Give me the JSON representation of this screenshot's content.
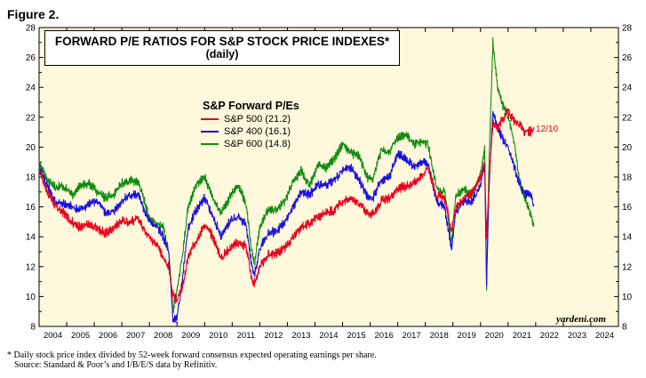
{
  "figure_label": "Figure 2.",
  "footnote": {
    "line1": "*  Daily stock price index divided by 52-week forward consensus expected operating earnings per share.",
    "line2": "Source: Standard & Poor’s and I/B/E/S data by Refinitiv."
  },
  "credit": "yardeni.com",
  "chart_data": {
    "type": "line",
    "title": "FORWARD P/E RATIOS FOR S&P STOCK PRICE INDEXES*",
    "subtitle": "(daily)",
    "legend_title": "S&P Forward P/Es",
    "legend_placement": "upper-middle",
    "grid": false,
    "xlim": [
      2004.0,
      2025.0
    ],
    "ylim": [
      8,
      28
    ],
    "y_ticks": [
      8,
      10,
      12,
      14,
      16,
      18,
      20,
      22,
      24,
      26,
      28
    ],
    "x_tick_labels": [
      "2004",
      "2005",
      "2006",
      "2007",
      "2008",
      "2009",
      "2010",
      "2011",
      "2012",
      "2013",
      "2014",
      "2015",
      "2016",
      "2017",
      "2018",
      "2019",
      "2020",
      "2021",
      "2022",
      "2023",
      "2024"
    ],
    "annotation": "12/10",
    "series": [
      {
        "name": "S&P 500 (21.2)",
        "color": "#e8001c",
        "x": [
          2004.0,
          2004.3,
          2004.6,
          2004.9,
          2005.2,
          2005.5,
          2005.8,
          2006.1,
          2006.4,
          2006.7,
          2007.0,
          2007.3,
          2007.6,
          2007.8,
          2008.0,
          2008.3,
          2008.5,
          2008.7,
          2008.85,
          2009.0,
          2009.2,
          2009.4,
          2009.7,
          2010.0,
          2010.3,
          2010.6,
          2010.9,
          2011.2,
          2011.5,
          2011.7,
          2011.8,
          2012.0,
          2012.3,
          2012.6,
          2012.9,
          2013.2,
          2013.5,
          2013.8,
          2014.1,
          2014.4,
          2014.7,
          2015.0,
          2015.3,
          2015.6,
          2015.9,
          2016.1,
          2016.4,
          2016.7,
          2017.0,
          2017.3,
          2017.6,
          2017.9,
          2018.1,
          2018.4,
          2018.7,
          2018.95,
          2019.1,
          2019.4,
          2019.7,
          2020.0,
          2020.15,
          2020.22,
          2020.3,
          2020.45,
          2020.6,
          2020.8,
          2021.0,
          2021.2,
          2021.4,
          2021.6,
          2021.8,
          2021.94
        ],
        "values": [
          18.5,
          17.0,
          16.0,
          15.6,
          15.0,
          14.6,
          14.8,
          14.6,
          14.2,
          14.6,
          15.1,
          15.0,
          15.2,
          14.6,
          14.0,
          13.4,
          12.6,
          12.0,
          10.0,
          9.8,
          10.6,
          12.6,
          13.8,
          14.8,
          14.0,
          12.6,
          13.2,
          13.6,
          13.4,
          11.2,
          10.8,
          12.0,
          12.8,
          12.9,
          13.2,
          13.9,
          14.6,
          14.9,
          15.3,
          15.6,
          15.8,
          16.4,
          16.5,
          16.2,
          15.6,
          15.5,
          16.4,
          16.6,
          17.2,
          17.4,
          17.6,
          18.2,
          18.6,
          16.8,
          16.6,
          14.4,
          15.9,
          16.6,
          16.9,
          18.0,
          19.0,
          13.8,
          17.4,
          21.6,
          21.2,
          21.9,
          22.4,
          21.8,
          21.6,
          21.0,
          21.0,
          21.2
        ]
      },
      {
        "name": "S&P 400 (16.1)",
        "color": "#1a10e0",
        "x": [
          2004.0,
          2004.3,
          2004.6,
          2004.9,
          2005.2,
          2005.5,
          2005.8,
          2006.1,
          2006.4,
          2006.7,
          2007.0,
          2007.3,
          2007.6,
          2007.8,
          2008.0,
          2008.3,
          2008.5,
          2008.7,
          2008.85,
          2009.0,
          2009.2,
          2009.4,
          2009.7,
          2010.0,
          2010.3,
          2010.6,
          2010.9,
          2011.2,
          2011.5,
          2011.7,
          2011.8,
          2012.0,
          2012.3,
          2012.6,
          2012.9,
          2013.2,
          2013.5,
          2013.8,
          2014.1,
          2014.4,
          2014.7,
          2015.0,
          2015.3,
          2015.6,
          2015.9,
          2016.1,
          2016.4,
          2016.7,
          2017.0,
          2017.3,
          2017.6,
          2017.9,
          2018.1,
          2018.4,
          2018.7,
          2018.95,
          2019.1,
          2019.4,
          2019.7,
          2020.0,
          2020.15,
          2020.22,
          2020.3,
          2020.45,
          2020.6,
          2020.8,
          2021.0,
          2021.2,
          2021.4,
          2021.6,
          2021.8,
          2021.94
        ],
        "values": [
          18.7,
          17.4,
          16.3,
          16.2,
          16.0,
          15.8,
          16.2,
          16.4,
          15.6,
          15.7,
          16.4,
          16.8,
          16.8,
          15.8,
          15.0,
          14.6,
          14.0,
          13.0,
          8.4,
          8.5,
          11.2,
          14.6,
          15.8,
          16.6,
          15.4,
          14.0,
          15.0,
          15.4,
          14.8,
          12.2,
          11.4,
          13.2,
          14.2,
          14.4,
          14.9,
          16.0,
          17.0,
          16.8,
          17.5,
          17.5,
          17.8,
          18.4,
          18.6,
          17.8,
          16.7,
          16.6,
          17.8,
          18.0,
          19.6,
          19.2,
          18.7,
          19.0,
          18.9,
          16.4,
          16.0,
          13.2,
          15.6,
          16.4,
          16.4,
          17.4,
          18.8,
          10.8,
          17.0,
          22.5,
          21.4,
          20.6,
          20.0,
          18.8,
          17.6,
          16.9,
          16.8,
          16.1
        ]
      },
      {
        "name": "S&P 600 (14.8)",
        "color": "#0f8c0f",
        "x": [
          2004.0,
          2004.3,
          2004.6,
          2004.9,
          2005.2,
          2005.5,
          2005.8,
          2006.1,
          2006.4,
          2006.7,
          2007.0,
          2007.3,
          2007.6,
          2007.8,
          2008.0,
          2008.3,
          2008.5,
          2008.7,
          2008.85,
          2009.0,
          2009.2,
          2009.4,
          2009.7,
          2010.0,
          2010.3,
          2010.6,
          2010.9,
          2011.2,
          2011.5,
          2011.7,
          2011.8,
          2012.0,
          2012.3,
          2012.6,
          2012.9,
          2013.2,
          2013.5,
          2013.8,
          2014.1,
          2014.4,
          2014.7,
          2015.0,
          2015.3,
          2015.6,
          2015.9,
          2016.1,
          2016.4,
          2016.7,
          2017.0,
          2017.3,
          2017.6,
          2017.9,
          2018.1,
          2018.4,
          2018.7,
          2018.95,
          2019.1,
          2019.4,
          2019.7,
          2020.0,
          2020.15,
          2020.22,
          2020.3,
          2020.45,
          2020.6,
          2020.8,
          2021.0,
          2021.2,
          2021.4,
          2021.6,
          2021.8,
          2021.94
        ],
        "values": [
          19.0,
          17.8,
          17.3,
          17.4,
          16.8,
          17.4,
          17.6,
          17.0,
          16.6,
          16.8,
          17.6,
          17.8,
          17.6,
          16.5,
          15.2,
          14.8,
          14.6,
          13.0,
          9.0,
          10.4,
          12.8,
          16.0,
          17.5,
          18.0,
          16.6,
          15.6,
          16.6,
          17.5,
          16.2,
          13.2,
          12.2,
          14.6,
          15.8,
          15.8,
          16.4,
          17.6,
          18.4,
          17.4,
          18.8,
          18.6,
          19.2,
          20.2,
          19.6,
          19.4,
          18.0,
          17.8,
          19.8,
          19.7,
          20.6,
          20.8,
          20.2,
          20.4,
          20.2,
          17.3,
          17.0,
          13.6,
          16.8,
          17.2,
          16.8,
          18.2,
          20.0,
          10.6,
          18.6,
          27.0,
          24.2,
          22.8,
          22.0,
          20.6,
          17.8,
          16.6,
          15.6,
          14.8
        ]
      }
    ]
  }
}
